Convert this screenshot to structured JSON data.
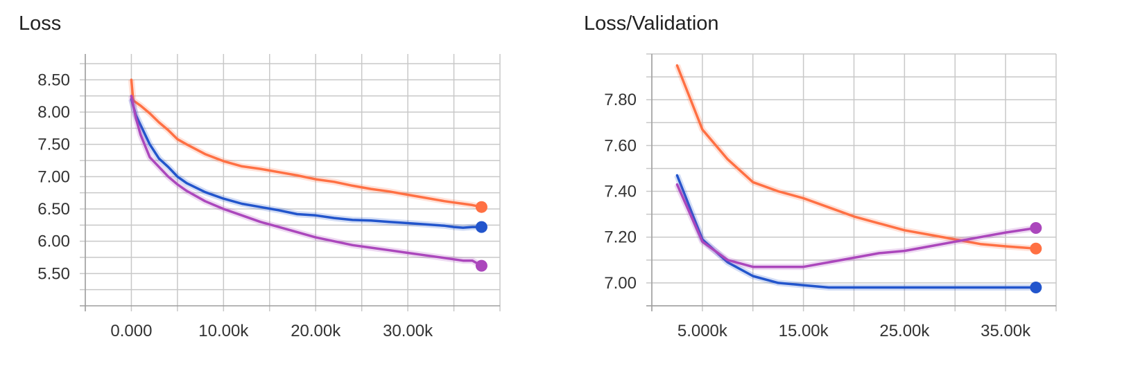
{
  "chart_data": [
    {
      "type": "line",
      "title": "Loss",
      "xlabel": "",
      "ylabel": "",
      "xlim": [
        -5000,
        40000
      ],
      "ylim": [
        5.0,
        8.9
      ],
      "x_ticks": [
        0,
        10000,
        20000,
        30000
      ],
      "x_tick_labels": [
        "0.000",
        "10.00k",
        "20.00k",
        "30.00k"
      ],
      "y_ticks": [
        5.5,
        6.0,
        6.5,
        7.0,
        7.5,
        8.0,
        8.5
      ],
      "y_tick_labels": [
        "5.50",
        "6.00",
        "6.50",
        "7.00",
        "7.50",
        "8.00",
        "8.50"
      ],
      "grid": true,
      "series": [
        {
          "color": "#ff7043",
          "x": [
            0,
            200,
            1000,
            2000,
            3000,
            4000,
            5000,
            6000,
            8000,
            10000,
            12000,
            14000,
            16000,
            18000,
            20000,
            22000,
            24000,
            26000,
            28000,
            30000,
            32000,
            34000,
            35000,
            36000,
            37000,
            38000
          ],
          "y": [
            8.5,
            8.18,
            8.1,
            7.98,
            7.84,
            7.72,
            7.58,
            7.5,
            7.35,
            7.24,
            7.16,
            7.12,
            7.07,
            7.02,
            6.96,
            6.92,
            6.86,
            6.81,
            6.77,
            6.72,
            6.67,
            6.62,
            6.6,
            6.58,
            6.56,
            6.53
          ]
        },
        {
          "color": "#2255cc",
          "x": [
            0,
            500,
            1000,
            2000,
            3000,
            4000,
            5000,
            6000,
            8000,
            10000,
            12000,
            14000,
            16000,
            18000,
            20000,
            22000,
            24000,
            26000,
            28000,
            30000,
            32000,
            34000,
            35000,
            36000,
            37000,
            38000
          ],
          "y": [
            8.2,
            7.95,
            7.8,
            7.5,
            7.28,
            7.15,
            7.0,
            6.9,
            6.76,
            6.66,
            6.58,
            6.53,
            6.48,
            6.42,
            6.4,
            6.36,
            6.33,
            6.32,
            6.3,
            6.28,
            6.26,
            6.24,
            6.22,
            6.21,
            6.22,
            6.22
          ]
        },
        {
          "color": "#ab47bc",
          "x": [
            0,
            500,
            1000,
            2000,
            3000,
            4000,
            5000,
            6000,
            8000,
            10000,
            12000,
            14000,
            16000,
            18000,
            20000,
            22000,
            24000,
            26000,
            28000,
            30000,
            32000,
            34000,
            35000,
            36000,
            37000,
            38000
          ],
          "y": [
            8.25,
            7.9,
            7.65,
            7.3,
            7.15,
            7.0,
            6.88,
            6.78,
            6.62,
            6.5,
            6.4,
            6.3,
            6.22,
            6.14,
            6.06,
            6.0,
            5.94,
            5.9,
            5.86,
            5.82,
            5.78,
            5.74,
            5.72,
            5.7,
            5.7,
            5.62
          ]
        }
      ],
      "end_markers": [
        {
          "color": "#ff7043",
          "x": 38000,
          "y": 6.53
        },
        {
          "color": "#2255cc",
          "x": 38000,
          "y": 6.22
        },
        {
          "color": "#ab47bc",
          "x": 38000,
          "y": 5.62
        }
      ]
    },
    {
      "type": "line",
      "title": "Loss/Validation",
      "xlabel": "",
      "ylabel": "",
      "xlim": [
        0,
        40000
      ],
      "ylim": [
        6.9,
        8.0
      ],
      "x_ticks": [
        5000,
        15000,
        25000,
        35000
      ],
      "x_tick_labels": [
        "5.000k",
        "15.00k",
        "25.00k",
        "35.00k"
      ],
      "y_ticks": [
        7.0,
        7.2,
        7.4,
        7.6,
        7.8
      ],
      "y_tick_labels": [
        "7.00",
        "7.20",
        "7.40",
        "7.60",
        "7.80"
      ],
      "grid": true,
      "series": [
        {
          "color": "#ff7043",
          "x": [
            2500,
            5000,
            7500,
            10000,
            12500,
            15000,
            17500,
            20000,
            22500,
            25000,
            27500,
            30000,
            32500,
            35000,
            38000
          ],
          "y": [
            7.95,
            7.67,
            7.54,
            7.44,
            7.4,
            7.37,
            7.33,
            7.29,
            7.26,
            7.23,
            7.21,
            7.19,
            7.17,
            7.16,
            7.15
          ]
        },
        {
          "color": "#2255cc",
          "x": [
            2500,
            5000,
            7500,
            10000,
            12500,
            15000,
            17500,
            20000,
            22500,
            25000,
            27500,
            30000,
            32500,
            35000,
            38000
          ],
          "y": [
            7.47,
            7.19,
            7.09,
            7.03,
            7.0,
            6.99,
            6.98,
            6.98,
            6.98,
            6.98,
            6.98,
            6.98,
            6.98,
            6.98,
            6.98
          ]
        },
        {
          "color": "#ab47bc",
          "x": [
            2500,
            5000,
            7500,
            10000,
            12500,
            15000,
            17500,
            20000,
            22500,
            25000,
            27500,
            30000,
            32500,
            35000,
            38000
          ],
          "y": [
            7.43,
            7.18,
            7.1,
            7.07,
            7.07,
            7.07,
            7.09,
            7.11,
            7.13,
            7.14,
            7.16,
            7.18,
            7.2,
            7.22,
            7.24
          ]
        }
      ],
      "end_markers": [
        {
          "color": "#ff7043",
          "x": 38000,
          "y": 7.15
        },
        {
          "color": "#2255cc",
          "x": 38000,
          "y": 6.98
        },
        {
          "color": "#ab47bc",
          "x": 38000,
          "y": 7.24
        }
      ]
    }
  ]
}
